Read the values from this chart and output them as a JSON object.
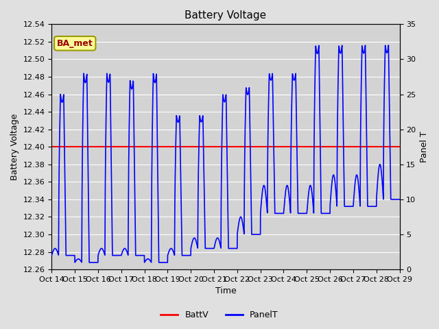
{
  "title": "Battery Voltage",
  "xlabel": "Time",
  "ylabel_left": "Battery Voltage",
  "ylabel_right": "Panel T",
  "ylim_left": [
    12.26,
    12.54
  ],
  "ylim_right": [
    0,
    35
  ],
  "battv_value": 12.4,
  "background_color": "#e0e0e0",
  "plot_bg_color": "#d3d3d3",
  "grid_color": "#ffffff",
  "batt_color": "red",
  "panel_color": "blue",
  "annotation_text": "BA_met",
  "annotation_bg": "#ffff99",
  "annotation_border": "#999900",
  "x_tick_labels": [
    "Oct 14",
    "Oct 15",
    "Oct 16",
    "Oct 17",
    "Oct 18",
    "Oct 19",
    "Oct 20",
    "Oct 21",
    "Oct 22",
    "Oct 23",
    "Oct 24",
    "Oct 25",
    "Oct 26",
    "Oct 27",
    "Oct 28",
    "Oct 29"
  ],
  "title_fontsize": 11,
  "axis_fontsize": 9,
  "tick_fontsize": 8,
  "figsize": [
    6.4,
    4.8
  ],
  "dpi": 100
}
